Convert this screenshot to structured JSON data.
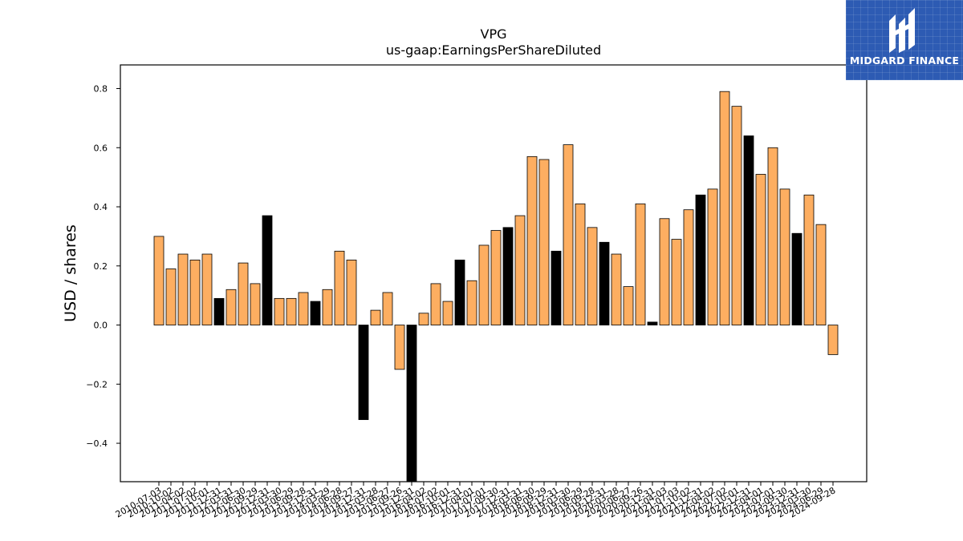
{
  "chart_data": {
    "type": "bar",
    "title": "VPG",
    "subtitle": "us-gaap:EarningsPerShareDiluted",
    "ylabel": "USD / shares",
    "xlabel": "",
    "ylim": [
      -0.53,
      0.88
    ],
    "yticks": [
      -0.4,
      -0.2,
      0.0,
      0.2,
      0.4,
      0.6,
      0.8
    ],
    "grid": false,
    "colors": {
      "normal": "#fdae61",
      "highlight": "#000000"
    },
    "categories": [
      "2010-07-03",
      "2010-10-02",
      "2011-04-02",
      "2011-07-02",
      "2011-10-01",
      "2011-12-31",
      "2012-03-31",
      "2012-06-30",
      "2012-09-29",
      "2012-12-31",
      "2013-03-30",
      "2013-06-29",
      "2013-09-28",
      "2013-12-31",
      "2014-03-29",
      "2014-06-28",
      "2014-09-27",
      "2014-12-31",
      "2015-03-28",
      "2015-06-27",
      "2015-09-26",
      "2015-12-31",
      "2016-04-02",
      "2016-07-02",
      "2016-10-01",
      "2016-12-31",
      "2017-04-01",
      "2017-07-01",
      "2017-09-30",
      "2017-12-31",
      "2018-03-31",
      "2018-06-30",
      "2018-09-29",
      "2018-12-31",
      "2019-03-30",
      "2019-06-29",
      "2019-09-28",
      "2019-12-31",
      "2020-03-28",
      "2020-06-27",
      "2020-09-26",
      "2020-12-31",
      "2021-04-03",
      "2021-07-03",
      "2021-10-02",
      "2021-12-31",
      "2022-04-02",
      "2022-07-02",
      "2022-10-01",
      "2022-12-31",
      "2023-04-01",
      "2023-07-01",
      "2023-09-30",
      "2023-12-31",
      "2024-03-30",
      "2024-06-29",
      "2024-09-28"
    ],
    "values": [
      0.3,
      0.19,
      0.24,
      0.22,
      0.24,
      0.09,
      0.12,
      0.21,
      0.14,
      0.37,
      0.09,
      0.09,
      0.11,
      0.08,
      0.12,
      0.25,
      0.22,
      -0.32,
      0.05,
      0.11,
      -0.15,
      -0.55,
      0.04,
      0.14,
      0.08,
      0.22,
      0.15,
      0.27,
      0.32,
      0.33,
      0.37,
      0.57,
      0.56,
      0.25,
      0.61,
      0.41,
      0.33,
      0.28,
      0.24,
      0.13,
      0.41,
      0.01,
      0.36,
      0.29,
      0.39,
      0.44,
      0.46,
      0.79,
      0.74,
      0.64,
      0.51,
      0.6,
      0.46,
      0.31,
      0.44,
      0.34,
      -0.1
    ],
    "highlighted": [
      0,
      0,
      0,
      0,
      0,
      1,
      0,
      0,
      0,
      1,
      0,
      0,
      0,
      1,
      0,
      0,
      0,
      1,
      0,
      0,
      0,
      1,
      0,
      0,
      0,
      1,
      0,
      0,
      0,
      1,
      0,
      0,
      0,
      1,
      0,
      0,
      0,
      1,
      0,
      0,
      0,
      1,
      0,
      0,
      0,
      1,
      0,
      0,
      0,
      1,
      0,
      0,
      0,
      1,
      0,
      0,
      0
    ]
  },
  "logo": {
    "text": "MIDGARD FINANCE",
    "color": "#2d5bb3"
  }
}
